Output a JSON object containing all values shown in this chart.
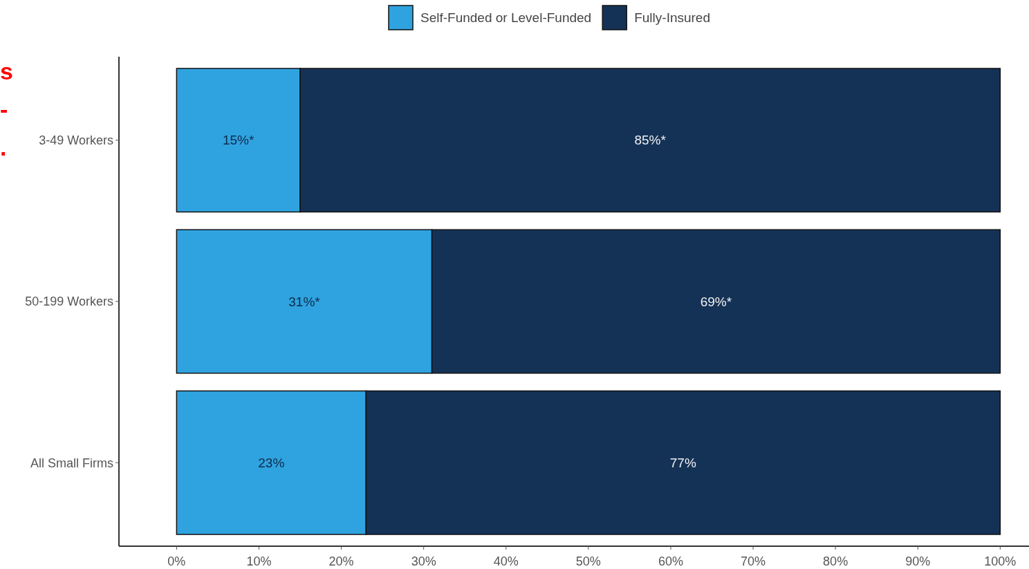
{
  "chart_data": {
    "type": "bar",
    "orientation": "horizontal",
    "stacked": true,
    "categories": [
      "3-49 Workers",
      "50-199 Workers",
      "All Small Firms"
    ],
    "series": [
      {
        "name": "Self-Funded or Level-Funded",
        "color": "#2fa3e0",
        "values": [
          15,
          31,
          23
        ],
        "value_labels": [
          "15%*",
          "31%*",
          "23%"
        ]
      },
      {
        "name": "Fully-Insured",
        "color": "#143256",
        "values": [
          85,
          69,
          77
        ],
        "value_labels": [
          "85%*",
          "69%*",
          "77%"
        ]
      }
    ],
    "xlim": [
      -7,
      103.5
    ],
    "xticks": [
      {
        "value": 0,
        "label": "0%"
      },
      {
        "value": 10,
        "label": "10%"
      },
      {
        "value": 20,
        "label": "20%"
      },
      {
        "value": 30,
        "label": "30%"
      },
      {
        "value": 40,
        "label": "40%"
      },
      {
        "value": 50,
        "label": "50%"
      },
      {
        "value": 60,
        "label": "60%"
      },
      {
        "value": 70,
        "label": "70%"
      },
      {
        "value": 80,
        "label": "80%"
      },
      {
        "value": 90,
        "label": "90%"
      },
      {
        "value": 100,
        "label": "100%"
      }
    ],
    "legend": "top",
    "grid": false,
    "annotations": [
      "s",
      "-",
      "."
    ]
  }
}
